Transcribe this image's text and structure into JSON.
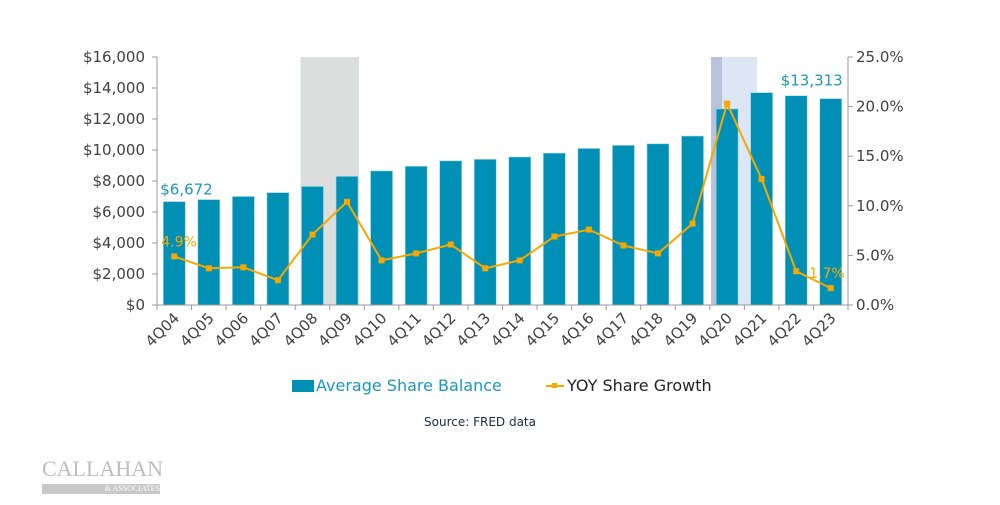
{
  "chart_data": {
    "type": "bar+line",
    "title": "",
    "categories": [
      "4Q04",
      "4Q05",
      "4Q06",
      "4Q07",
      "4Q08",
      "4Q09",
      "4Q10",
      "4Q11",
      "4Q12",
      "4Q13",
      "4Q14",
      "4Q15",
      "4Q16",
      "4Q17",
      "4Q18",
      "4Q19",
      "4Q20",
      "4Q21",
      "4Q22",
      "4Q23"
    ],
    "series": [
      {
        "name": "Average Share Balance",
        "type": "bar",
        "axis": "left",
        "color": "#0090B5",
        "values": [
          6672,
          6800,
          7000,
          7250,
          7650,
          8300,
          8650,
          8950,
          9300,
          9400,
          9550,
          9800,
          10100,
          10300,
          10400,
          10900,
          12650,
          13700,
          13500,
          13313
        ]
      },
      {
        "name": "YOY Share Growth",
        "type": "line",
        "axis": "right",
        "color": "#F7A800",
        "values": [
          4.9,
          3.7,
          3.8,
          2.5,
          7.1,
          10.4,
          4.5,
          5.2,
          6.1,
          3.7,
          4.5,
          6.9,
          7.6,
          6.0,
          5.2,
          8.2,
          20.3,
          12.7,
          3.4,
          1.7
        ]
      }
    ],
    "left_axis": {
      "ylim": [
        0,
        16000
      ],
      "ticks": [
        "$0",
        "$2,000",
        "$4,000",
        "$6,000",
        "$8,000",
        "$10,000",
        "$12,000",
        "$14,000",
        "$16,000"
      ]
    },
    "right_axis": {
      "ylim": [
        0,
        25
      ],
      "ticks": [
        "0.0%",
        "5.0%",
        "10.0%",
        "15.0%",
        "20.0%",
        "25.0%"
      ]
    },
    "annotations": {
      "first_bar": "$6,672",
      "last_bar": "$13,313",
      "first_line": "4.9%",
      "last_line": "1.7%"
    },
    "shaded_periods": [
      {
        "from": "4Q08",
        "to": "4Q09",
        "color": "#DCDDDD"
      },
      {
        "from": "4Q20",
        "to": "4Q20",
        "color": "#DCE6F5"
      }
    ],
    "legend": {
      "placement": "bottom"
    },
    "source": "Source: FRED data"
  },
  "logo": {
    "name": "CALLAHAN",
    "sub": "& ASSOCIATES"
  }
}
